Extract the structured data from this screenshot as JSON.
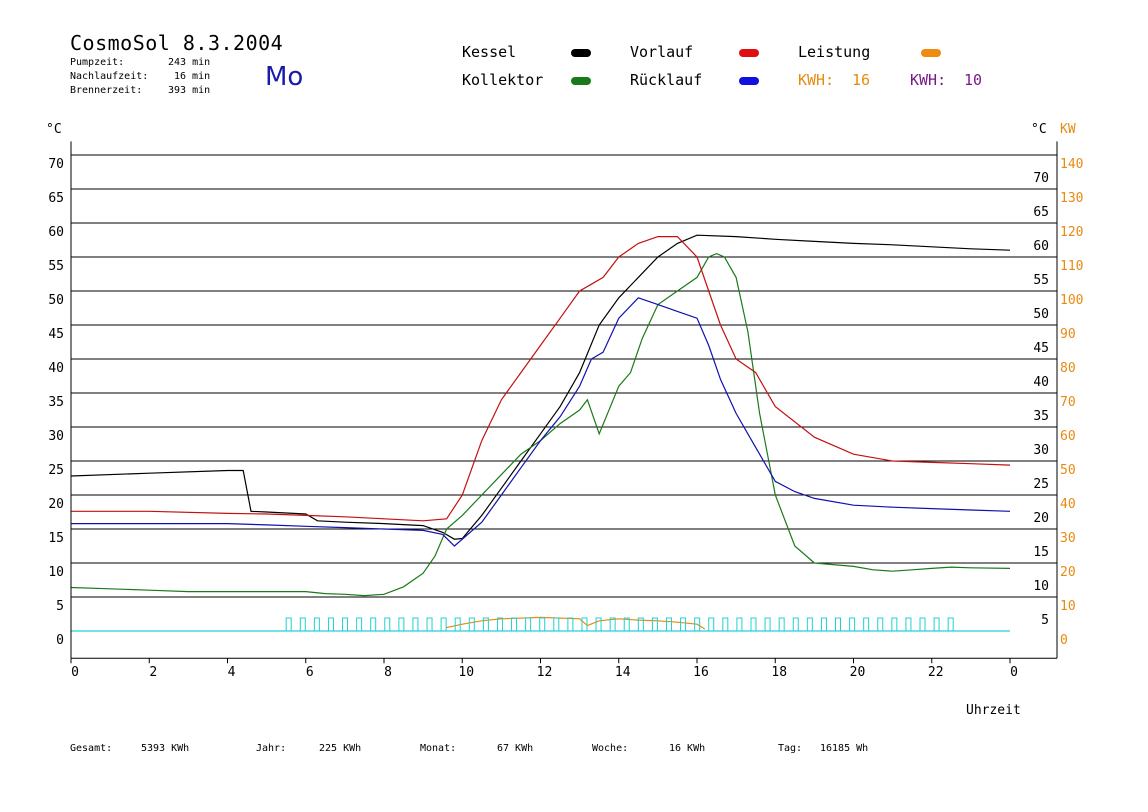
{
  "header": {
    "title": "CosmoSol 8.3.2004",
    "day": "Mo",
    "stats": [
      {
        "label": "Pumpzeit:",
        "value": "243 min"
      },
      {
        "label": "Nachlaufzeit:",
        "value": "16 min"
      },
      {
        "label": "Brennerzeit:",
        "value": "393 min"
      }
    ]
  },
  "legend": {
    "kessel": "Kessel",
    "kollektor": "Kollektor",
    "vorlauf": "Vorlauf",
    "ruecklauf": "Rücklauf",
    "leistung": "Leistung",
    "kwh1_label": "KWH:",
    "kwh1_value": "16",
    "kwh2_label": "KWH:",
    "kwh2_value": "10"
  },
  "colors": {
    "kessel": "#000000",
    "kollektor": "#1a7a1a",
    "vorlauf": "#c41010",
    "ruecklauf": "#1010b0",
    "leistung": "#e88a10",
    "purple": "#7a1a8a",
    "cyan": "#20d0d8"
  },
  "footer": {
    "gesamt_label": "Gesamt:",
    "gesamt_value": "5393 KWh",
    "jahr_label": "Jahr:",
    "jahr_value": "225 KWh",
    "monat_label": "Monat:",
    "monat_value": "67 KWh",
    "woche_label": "Woche:",
    "woche_value": "16 KWh",
    "tag_label": "Tag:",
    "tag_value": "16185 Wh"
  },
  "chart_data": {
    "type": "line",
    "xlabel": "Uhrzeit",
    "ylabel_left": "°C",
    "ylabel_right_temp": "°C",
    "ylabel_right_power": "KW",
    "xlim": [
      0,
      24
    ],
    "ylim": [
      -4,
      72
    ],
    "x_ticks": [
      "0",
      "2",
      "4",
      "6",
      "8",
      "10",
      "12",
      "14",
      "16",
      "18",
      "20",
      "22",
      "0"
    ],
    "y_ticks_left": [
      0,
      5,
      10,
      15,
      20,
      25,
      30,
      35,
      40,
      45,
      50,
      55,
      60,
      65,
      70
    ],
    "y_ticks_right_temp": [
      5,
      10,
      15,
      20,
      25,
      30,
      35,
      40,
      45,
      50,
      55,
      60,
      65,
      70
    ],
    "y_ticks_right_power": [
      0,
      10,
      20,
      30,
      40,
      50,
      60,
      70,
      80,
      90,
      100,
      110,
      120,
      130,
      140
    ],
    "grid": true,
    "series": [
      {
        "name": "Kessel",
        "x": [
          0,
          2,
          4,
          4.4,
          4.6,
          5,
          6,
          6.3,
          7,
          8,
          9,
          9.5,
          9.8,
          10,
          10.5,
          11,
          11.5,
          12,
          12.5,
          13,
          13.5,
          14,
          14.5,
          15,
          15.5,
          16,
          17,
          18,
          19,
          20,
          21,
          22,
          23,
          24
        ],
        "y": [
          22.8,
          23.2,
          23.6,
          23.6,
          17.6,
          17.5,
          17.2,
          16.2,
          16,
          15.8,
          15.5,
          14.5,
          13.5,
          13.6,
          17,
          21,
          25,
          29,
          33,
          38,
          45,
          49,
          52,
          55,
          57,
          58.2,
          58,
          57.6,
          57.3,
          57,
          56.8,
          56.5,
          56.2,
          56
        ]
      },
      {
        "name": "Kollektor",
        "x": [
          0,
          1,
          2,
          3,
          4,
          5,
          6,
          6.5,
          7,
          7.5,
          8,
          8.5,
          9,
          9.3,
          9.6,
          10,
          10.5,
          11,
          11.5,
          12,
          12.5,
          13,
          13.2,
          13.5,
          14,
          14.3,
          14.6,
          15,
          15.5,
          16,
          16.3,
          16.5,
          16.7,
          17,
          17.3,
          17.6,
          18,
          18.5,
          19,
          20,
          20.5,
          21,
          21.5,
          22,
          22.5,
          23,
          24
        ],
        "y": [
          6.4,
          6.2,
          6,
          5.8,
          5.8,
          5.8,
          5.8,
          5.5,
          5.4,
          5.2,
          5.4,
          6.5,
          8.5,
          11,
          15,
          17,
          20,
          23,
          26,
          28,
          30.5,
          32.5,
          34,
          29,
          36,
          38,
          43,
          48,
          50,
          52,
          55,
          55.5,
          55,
          52,
          44,
          32,
          20,
          12.5,
          10,
          9.5,
          9,
          8.8,
          9,
          9.2,
          9.4,
          9.3,
          9.2
        ]
      },
      {
        "name": "Vorlauf",
        "x": [
          0,
          2,
          4,
          5,
          6,
          7,
          8,
          9,
          9.6,
          10,
          10.5,
          11,
          11.5,
          12,
          12.5,
          13,
          13.3,
          13.6,
          14,
          14.5,
          15,
          15.5,
          16,
          16.3,
          16.6,
          17,
          17.5,
          18,
          19,
          20,
          21,
          22,
          23,
          24
        ],
        "y": [
          17.6,
          17.6,
          17.3,
          17.2,
          17,
          16.8,
          16.5,
          16.2,
          16.5,
          20,
          28,
          34,
          38,
          42,
          46,
          50,
          51,
          52,
          55,
          57,
          58,
          58,
          55,
          50,
          45,
          40,
          38,
          33,
          28.5,
          26,
          25,
          24.8,
          24.6,
          24.4
        ]
      },
      {
        "name": "Rücklauf",
        "x": [
          0,
          2,
          4,
          5,
          6,
          7,
          8,
          9,
          9.5,
          9.8,
          10,
          10.5,
          11,
          11.5,
          12,
          12.5,
          13,
          13.3,
          13.6,
          14,
          14.5,
          15,
          15.5,
          16,
          16.3,
          16.6,
          17,
          17.5,
          18,
          18.5,
          19,
          20,
          21,
          22,
          23,
          24
        ],
        "y": [
          15.8,
          15.8,
          15.8,
          15.6,
          15.4,
          15.2,
          15,
          14.8,
          14.2,
          12.5,
          13.5,
          16,
          20,
          24,
          28,
          31.5,
          36,
          40,
          41,
          46,
          49,
          48,
          47,
          46,
          42,
          37,
          32,
          27,
          22,
          20.5,
          19.5,
          18.5,
          18.2,
          18,
          17.8,
          17.6
        ]
      },
      {
        "name": "Leistung",
        "x": [
          9.6,
          10,
          10.5,
          11,
          12,
          13,
          13.2,
          13.5,
          14,
          14.5,
          15,
          15.5,
          16,
          16.2
        ],
        "y": [
          0.5,
          1,
          1.5,
          1.8,
          2,
          1.8,
          0.8,
          1.5,
          1.8,
          1.6,
          1.5,
          1.3,
          1,
          0.3
        ]
      }
    ],
    "pump_x_range": [
      4.9,
      22.6
    ]
  }
}
